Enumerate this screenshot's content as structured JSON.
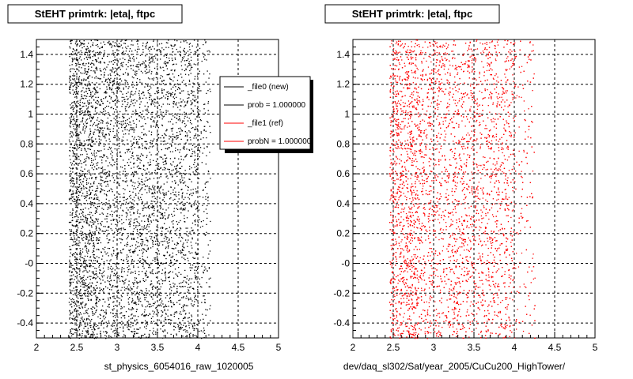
{
  "footer": "",
  "chart_data": [
    {
      "type": "scatter",
      "title": "StEHT primtrk: |eta|, ftpc",
      "xlabel": "st_physics_6054016_raw_1020005",
      "ylabel": "",
      "xlim": [
        2,
        5
      ],
      "ylim": [
        -0.5,
        1.5
      ],
      "x_ticks": [
        "2",
        "2.5",
        "3",
        "3.5",
        "4",
        "4.5",
        "5"
      ],
      "y_ticks": [
        "-0.4",
        "-0.2",
        "-0",
        "0.2",
        "0.4",
        "0.6",
        "0.8",
        "1",
        "1.2",
        "1.4"
      ],
      "grid": true,
      "marker_color": "#000000",
      "x_distribution_range": [
        2.4,
        4.15
      ],
      "legend": {
        "placement": "top-right",
        "entries": [
          {
            "label": "_file0 (new)",
            "color": "#000000"
          },
          {
            "label": "prob = 1.000000",
            "color": "#000000"
          },
          {
            "label": "_file1 (ref)",
            "color": "#ff0000"
          },
          {
            "label": "probN = 1.000000",
            "color": "#ff0000"
          }
        ]
      }
    },
    {
      "type": "scatter",
      "title": "StEHT primtrk: |eta|, ftpc",
      "xlabel": "dev/daq_sl302/Sat/year_2005/CuCu200_HighTower/",
      "ylabel": "",
      "xlim": [
        2,
        5
      ],
      "ylim": [
        -0.5,
        1.5
      ],
      "x_ticks": [
        "2",
        "2.5",
        "3",
        "3.5",
        "4",
        "4.5",
        "5"
      ],
      "y_ticks": [
        "-0.4",
        "-0.2",
        "-0",
        "0.2",
        "0.4",
        "0.6",
        "0.8",
        "1",
        "1.2",
        "1.4"
      ],
      "grid": true,
      "marker_color": "#ff0000",
      "x_distribution_range": [
        2.45,
        4.25
      ]
    }
  ]
}
